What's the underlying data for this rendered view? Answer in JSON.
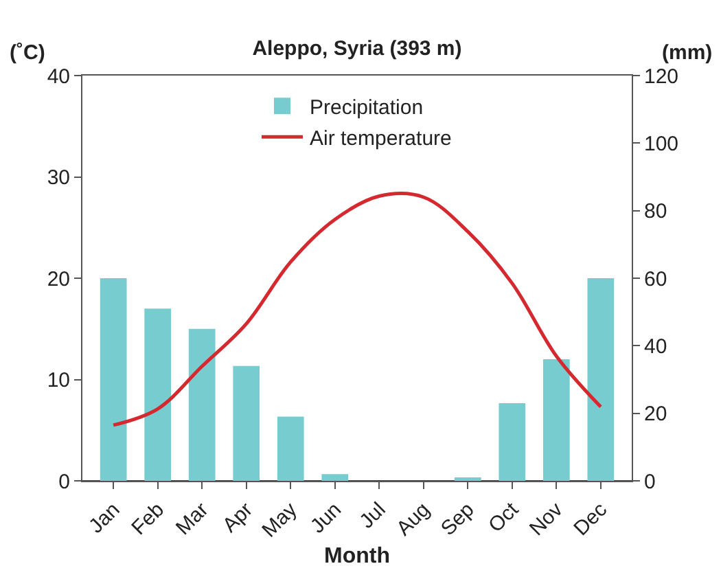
{
  "chart_data": {
    "type": "bar",
    "title": "Aleppo, Syria (393 m)",
    "xlabel": "Month",
    "ylabel": "(˚C)",
    "y2label": "(mm)",
    "categories": [
      "Jan",
      "Feb",
      "Mar",
      "Apr",
      "May",
      "Jun",
      "Jul",
      "Aug",
      "Sep",
      "Oct",
      "Nov",
      "Dec"
    ],
    "series": [
      {
        "name": "Precipitation",
        "axis": "y2",
        "color": "#77ccd0",
        "values": [
          60,
          51,
          45,
          34,
          19,
          2,
          0,
          0,
          1,
          23,
          36,
          60
        ]
      },
      {
        "name": "Air temperature",
        "type": "line",
        "color": "#d42a2f",
        "values": [
          5.5,
          7.1,
          11.3,
          15.5,
          21.6,
          25.8,
          28.1,
          28.0,
          24.6,
          19.5,
          12.3,
          7.3
        ]
      }
    ],
    "ylim": [
      0,
      40
    ],
    "yticks": [
      0,
      10,
      20,
      30,
      40
    ],
    "y2lim": [
      0,
      120
    ],
    "y2ticks": [
      0,
      20,
      40,
      60,
      80,
      100,
      120
    ],
    "grid": false,
    "legend": "top",
    "marker": "none",
    "line_style": "solid"
  }
}
